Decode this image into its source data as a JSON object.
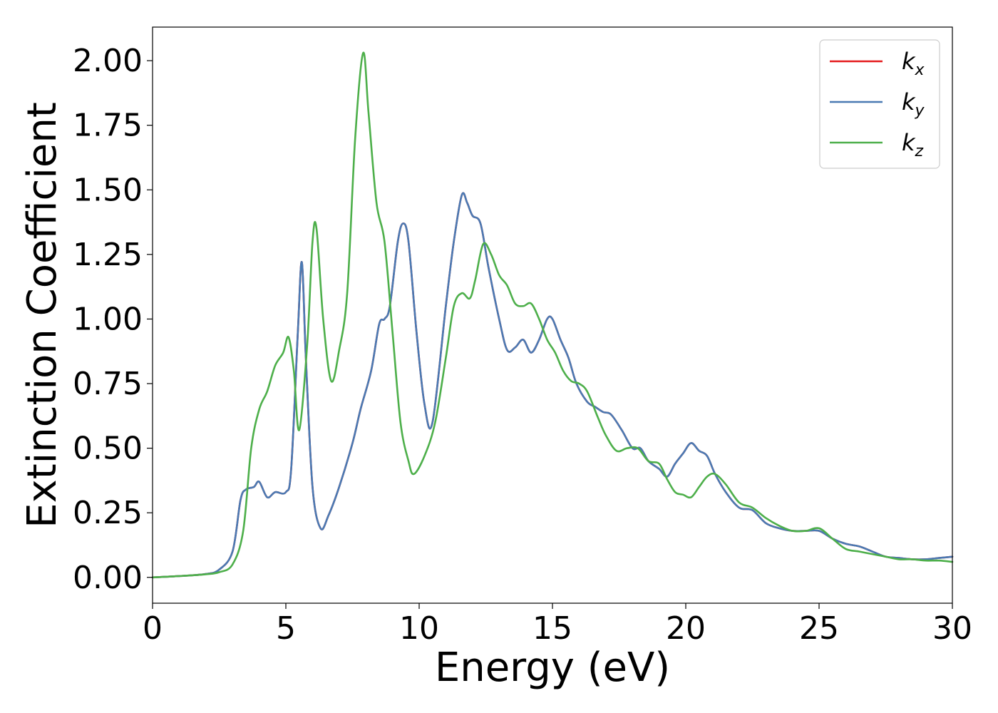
{
  "chart_data": {
    "type": "line",
    "title": "",
    "xlabel": "Energy (eV)",
    "ylabel": "Extinction Coefficient",
    "xlim": [
      0,
      30
    ],
    "ylim": [
      -0.1,
      2.13
    ],
    "xticks": [
      0,
      5,
      10,
      15,
      20,
      25,
      30
    ],
    "xtick_labels": [
      "0",
      "5",
      "10",
      "15",
      "20",
      "25",
      "30"
    ],
    "yticks": [
      0,
      0.25,
      0.5,
      0.75,
      1.0,
      1.25,
      1.5,
      1.75,
      2.0
    ],
    "ytick_labels": [
      "0.00",
      "0.25",
      "0.50",
      "0.75",
      "1.00",
      "1.25",
      "1.50",
      "1.75",
      "2.00"
    ],
    "grid": false,
    "legend_position": "top-right",
    "series": [
      {
        "name": "k",
        "subscript": "x",
        "color": "#e41a1c",
        "x": [
          0,
          1,
          2,
          2.5,
          3.0,
          3.3,
          3.5,
          3.8,
          4.0,
          4.3,
          4.6,
          5.0,
          5.2,
          5.45,
          5.6,
          5.75,
          6.0,
          6.3,
          6.6,
          7.0,
          7.5,
          7.8,
          8.2,
          8.5,
          8.7,
          8.9,
          9.2,
          9.4,
          9.6,
          9.9,
          10.2,
          10.5,
          11.0,
          11.3,
          11.6,
          11.8,
          12.0,
          12.3,
          12.6,
          13.0,
          13.3,
          13.6,
          13.9,
          14.2,
          14.5,
          14.8,
          15.0,
          15.3,
          15.6,
          15.9,
          16.3,
          16.6,
          16.9,
          17.2,
          17.6,
          18.0,
          18.3,
          18.6,
          19.0,
          19.3,
          19.6,
          19.9,
          20.2,
          20.5,
          20.8,
          21.1,
          21.5,
          22.0,
          22.5,
          23.0,
          23.5,
          24.0,
          24.5,
          25.0,
          25.5,
          26.0,
          26.5,
          27.0,
          27.5,
          28.0,
          28.5,
          29.0,
          29.5,
          30.0
        ],
        "y": [
          0,
          0.005,
          0.013,
          0.03,
          0.1,
          0.3,
          0.34,
          0.35,
          0.37,
          0.31,
          0.33,
          0.33,
          0.42,
          0.95,
          1.22,
          0.85,
          0.35,
          0.19,
          0.24,
          0.35,
          0.52,
          0.65,
          0.8,
          0.98,
          1.0,
          1.05,
          1.3,
          1.37,
          1.3,
          0.95,
          0.67,
          0.6,
          1.05,
          1.3,
          1.48,
          1.45,
          1.4,
          1.37,
          1.2,
          1.0,
          0.88,
          0.89,
          0.92,
          0.87,
          0.92,
          1.0,
          1.0,
          0.92,
          0.85,
          0.75,
          0.68,
          0.66,
          0.64,
          0.63,
          0.57,
          0.5,
          0.5,
          0.45,
          0.42,
          0.39,
          0.44,
          0.48,
          0.52,
          0.49,
          0.47,
          0.4,
          0.33,
          0.27,
          0.26,
          0.21,
          0.19,
          0.18,
          0.18,
          0.18,
          0.15,
          0.13,
          0.12,
          0.1,
          0.08,
          0.075,
          0.07,
          0.07,
          0.075,
          0.08
        ]
      },
      {
        "name": "k",
        "subscript": "y",
        "color": "#4a7ab3",
        "x": [
          0,
          1,
          2,
          2.5,
          3.0,
          3.3,
          3.5,
          3.8,
          4.0,
          4.3,
          4.6,
          5.0,
          5.2,
          5.45,
          5.6,
          5.75,
          6.0,
          6.3,
          6.6,
          7.0,
          7.5,
          7.8,
          8.2,
          8.5,
          8.7,
          8.9,
          9.2,
          9.4,
          9.6,
          9.9,
          10.2,
          10.5,
          11.0,
          11.3,
          11.6,
          11.8,
          12.0,
          12.3,
          12.6,
          13.0,
          13.3,
          13.6,
          13.9,
          14.2,
          14.5,
          14.8,
          15.0,
          15.3,
          15.6,
          15.9,
          16.3,
          16.6,
          16.9,
          17.2,
          17.6,
          18.0,
          18.3,
          18.6,
          19.0,
          19.3,
          19.6,
          19.9,
          20.2,
          20.5,
          20.8,
          21.1,
          21.5,
          22.0,
          22.5,
          23.0,
          23.5,
          24.0,
          24.5,
          25.0,
          25.5,
          26.0,
          26.5,
          27.0,
          27.5,
          28.0,
          28.5,
          29.0,
          29.5,
          30.0
        ],
        "y": [
          0,
          0.005,
          0.013,
          0.03,
          0.1,
          0.3,
          0.34,
          0.35,
          0.37,
          0.31,
          0.33,
          0.33,
          0.42,
          0.95,
          1.22,
          0.85,
          0.35,
          0.19,
          0.24,
          0.35,
          0.52,
          0.65,
          0.8,
          0.98,
          1.0,
          1.05,
          1.3,
          1.37,
          1.3,
          0.95,
          0.67,
          0.6,
          1.05,
          1.3,
          1.48,
          1.45,
          1.4,
          1.37,
          1.2,
          1.0,
          0.88,
          0.89,
          0.92,
          0.87,
          0.92,
          1.0,
          1.0,
          0.92,
          0.85,
          0.75,
          0.68,
          0.66,
          0.64,
          0.63,
          0.57,
          0.5,
          0.5,
          0.45,
          0.42,
          0.39,
          0.44,
          0.48,
          0.52,
          0.49,
          0.47,
          0.4,
          0.33,
          0.27,
          0.26,
          0.21,
          0.19,
          0.18,
          0.18,
          0.18,
          0.15,
          0.13,
          0.12,
          0.1,
          0.08,
          0.075,
          0.07,
          0.07,
          0.075,
          0.08
        ]
      },
      {
        "name": "k",
        "subscript": "z",
        "color": "#4daf4a",
        "x": [
          0,
          1,
          2,
          2.5,
          3.0,
          3.4,
          3.7,
          4.0,
          4.3,
          4.6,
          4.9,
          5.1,
          5.3,
          5.5,
          5.8,
          6.0,
          6.15,
          6.4,
          6.7,
          7.0,
          7.3,
          7.6,
          7.9,
          8.1,
          8.4,
          8.7,
          9.0,
          9.3,
          9.6,
          9.8,
          10.2,
          10.6,
          11.0,
          11.3,
          11.6,
          11.9,
          12.1,
          12.4,
          12.7,
          13.0,
          13.3,
          13.6,
          13.9,
          14.2,
          14.5,
          14.8,
          15.1,
          15.4,
          15.7,
          16.0,
          16.3,
          16.7,
          17.0,
          17.4,
          17.8,
          18.2,
          18.6,
          19.0,
          19.3,
          19.6,
          19.9,
          20.2,
          20.5,
          20.8,
          21.1,
          21.5,
          22.0,
          22.5,
          23.0,
          23.5,
          24.0,
          24.5,
          25.0,
          25.5,
          26.0,
          26.5,
          27.0,
          27.5,
          28.0,
          28.5,
          29.0,
          29.5,
          30.0
        ],
        "y": [
          0,
          0.005,
          0.012,
          0.02,
          0.05,
          0.18,
          0.5,
          0.65,
          0.72,
          0.82,
          0.87,
          0.93,
          0.8,
          0.57,
          0.9,
          1.3,
          1.35,
          1.0,
          0.76,
          0.88,
          1.1,
          1.7,
          2.03,
          1.8,
          1.45,
          1.3,
          0.95,
          0.6,
          0.45,
          0.4,
          0.47,
          0.6,
          0.85,
          1.05,
          1.1,
          1.08,
          1.15,
          1.29,
          1.25,
          1.17,
          1.13,
          1.06,
          1.05,
          1.06,
          1.0,
          0.92,
          0.87,
          0.8,
          0.76,
          0.75,
          0.72,
          0.62,
          0.55,
          0.49,
          0.5,
          0.5,
          0.45,
          0.44,
          0.38,
          0.33,
          0.32,
          0.31,
          0.35,
          0.39,
          0.4,
          0.36,
          0.29,
          0.27,
          0.23,
          0.2,
          0.18,
          0.18,
          0.19,
          0.15,
          0.11,
          0.1,
          0.09,
          0.08,
          0.07,
          0.07,
          0.065,
          0.065,
          0.06
        ]
      }
    ]
  }
}
